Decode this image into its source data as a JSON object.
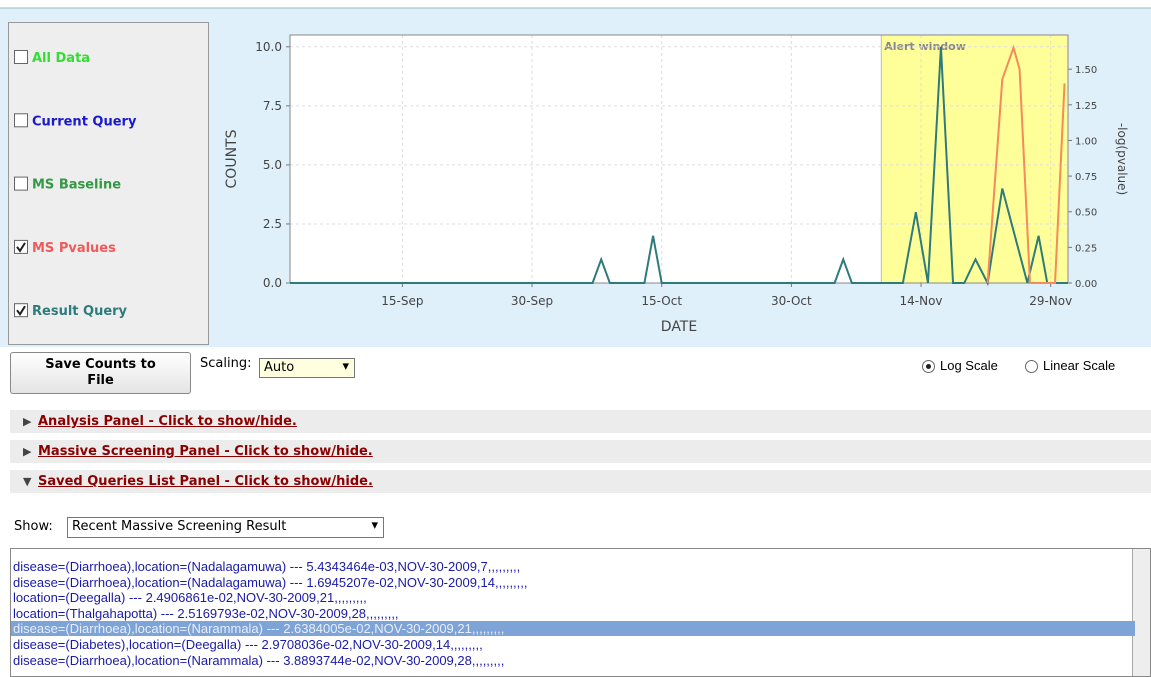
{
  "chart_data": {
    "type": "line",
    "ylabel": "COUNTS",
    "y2label": "-log(pvalue)",
    "xlabel": "DATE",
    "xlim": [
      245,
      335
    ],
    "ylim": [
      0,
      10.5
    ],
    "y2lim": [
      0,
      1.74
    ],
    "xticks": [
      {
        "value": 258,
        "label": "15-Sep"
      },
      {
        "value": 273,
        "label": "30-Sep"
      },
      {
        "value": 288,
        "label": "15-Oct"
      },
      {
        "value": 303,
        "label": "30-Oct"
      },
      {
        "value": 318,
        "label": "14-Nov"
      },
      {
        "value": 333,
        "label": "29-Nov"
      }
    ],
    "yticks": [
      {
        "value": 0,
        "label": "0.0"
      },
      {
        "value": 2.5,
        "label": "2.5"
      },
      {
        "value": 5,
        "label": "5.0"
      },
      {
        "value": 7.5,
        "label": "7.5"
      },
      {
        "value": 10,
        "label": "10.0"
      }
    ],
    "y2ticks": [
      {
        "value": 0,
        "label": "0.00"
      },
      {
        "value": 0.25,
        "label": "0.25"
      },
      {
        "value": 0.5,
        "label": "0.50"
      },
      {
        "value": 0.75,
        "label": "0.75"
      },
      {
        "value": 1,
        "label": "1.00"
      },
      {
        "value": 1.25,
        "label": "1.25"
      },
      {
        "value": 1.5,
        "label": "1.50"
      }
    ],
    "grid": true,
    "alert_window": {
      "label": "Alert window",
      "start": 313.4,
      "end": 335,
      "color": "#ffff99"
    },
    "series": [
      {
        "name": "Result Query",
        "color": "#2e7b7b",
        "x": [
          245,
          280,
          281,
          282,
          286,
          287,
          288,
          308,
          309,
          310,
          315.9,
          317.4,
          318.8,
          320.3,
          321.7,
          323,
          324.3,
          325.7,
          327.4,
          330.3,
          331.6,
          332.6,
          335
        ],
        "values": [
          0,
          0,
          1,
          0,
          0,
          2,
          0,
          0,
          1,
          0,
          0,
          3,
          0,
          10,
          0,
          0,
          1,
          0,
          4,
          0,
          2,
          0,
          0
        ]
      },
      {
        "name": "MS Pvalues",
        "color": "#f58a5a",
        "axis": "y2",
        "x": [
          325.7,
          327.4,
          328.7,
          329.4,
          330.6,
          333.5,
          334.6
        ],
        "values": [
          0,
          1.43,
          1.65,
          1.5,
          0,
          0,
          1.4
        ]
      }
    ]
  },
  "legend_controls": [
    {
      "label": "All Data",
      "color": "#33dd33",
      "checked": false
    },
    {
      "label": "Current Query",
      "color": "#1a1acc",
      "checked": false
    },
    {
      "label": "MS Baseline",
      "color": "#339944",
      "checked": false
    },
    {
      "label": "MS Pvalues",
      "color": "#f05a5a",
      "checked": true
    },
    {
      "label": "Result Query",
      "color": "#2e7b7b",
      "checked": true
    }
  ],
  "controls": {
    "save_button": "Save Counts to File",
    "scaling_label": "Scaling:",
    "scaling_value": "Auto",
    "radios": [
      {
        "label": "Log Scale",
        "checked": true
      },
      {
        "label": "Linear Scale",
        "checked": false
      }
    ]
  },
  "panels": [
    {
      "label": "Analysis Panel - Click to show/hide.",
      "expanded": false
    },
    {
      "label": "Massive Screening Panel - Click to show/hide.",
      "expanded": false
    },
    {
      "label": "Saved Queries List Panel - Click to show/hide.",
      "expanded": true
    }
  ],
  "show": {
    "label": "Show:",
    "value": "Recent Massive Screening Result"
  },
  "list": {
    "selected": 4,
    "items": [
      "disease=(Diarrhoea),location=(Nadalagamuwa) --- 5.4343464e-03,NOV-30-2009,7,,,,,,,,,",
      "disease=(Diarrhoea),location=(Nadalagamuwa) --- 1.6945207e-02,NOV-30-2009,14,,,,,,,,,",
      "location=(Deegalla) --- 2.4906861e-02,NOV-30-2009,21,,,,,,,,,",
      "location=(Thalgahapotta) --- 2.5169793e-02,NOV-30-2009,28,,,,,,,,,",
      "disease=(Diarrhoea),location=(Narammala) --- 2.6384005e-02,NOV-30-2009,21,,,,,,,,,",
      "disease=(Diabetes),location=(Deegalla) --- 2.9708036e-02,NOV-30-2009,14,,,,,,,,,",
      "disease=(Diarrhoea),location=(Narammala) --- 3.8893744e-02,NOV-30-2009,28,,,,,,,,,"
    ]
  }
}
